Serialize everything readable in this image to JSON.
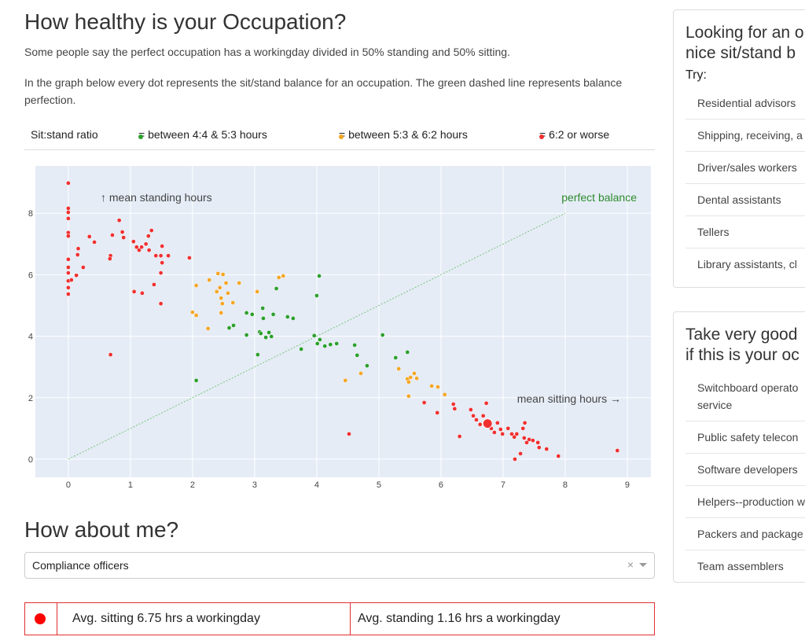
{
  "header": {
    "title": "How healthy is your Occupation?",
    "paragraph_1": "Some people say the perfect occupation has a workingday divided in 50% standing and 50% sitting.",
    "paragraph_2": "In the graph below every dot represents the sit/stand balance for an occupation. The green dashed line represents balance perfection."
  },
  "legend": {
    "title": "Sit:stand ratio"
  },
  "chart_data": {
    "type": "scatter",
    "xlim": [
      -0.53,
      9.38
    ],
    "ylim": [
      -0.59,
      9.54
    ],
    "xticks": [
      0,
      1,
      2,
      3,
      4,
      5,
      6,
      7,
      8,
      9
    ],
    "yticks": [
      0,
      2,
      4,
      6,
      8
    ],
    "grid": true,
    "background": "#e5ecf6",
    "annotations": [
      {
        "text": "↑ mean standing hours",
        "color": "#444444"
      },
      {
        "text": "perfect balance",
        "color": "#2e8b2e"
      },
      {
        "text": "mean sitting hours →",
        "color": "#444444"
      }
    ],
    "reference_line": {
      "x": [
        0,
        8
      ],
      "y": [
        0,
        8
      ],
      "color": "#7cc47c"
    },
    "highlight": {
      "x": 6.75,
      "y": 1.16,
      "color": "#f03030"
    },
    "series": [
      {
        "name": "= between 4:4 & 5:3 hours",
        "color": "#2ca02c",
        "x": [
          2.06,
          2.59,
          2.66,
          2.87,
          2.87,
          2.96,
          3.08,
          3.13,
          3.14,
          3.05,
          3.1,
          3.18,
          3.23,
          3.27,
          3.3,
          3.35,
          3.53,
          3.62,
          3.75,
          3.96,
          4.0,
          4.01,
          4.04,
          4.05,
          4.13,
          4.22,
          4.32,
          4.61,
          4.65,
          4.81,
          5.06,
          5.27,
          5.46
        ],
        "values": [
          2.56,
          4.27,
          4.35,
          4.04,
          4.76,
          4.71,
          4.14,
          4.91,
          4.58,
          3.4,
          4.09,
          3.96,
          4.12,
          3.99,
          4.71,
          5.55,
          4.63,
          4.58,
          3.58,
          4.02,
          5.32,
          3.76,
          5.96,
          3.89,
          3.68,
          3.73,
          3.76,
          3.71,
          3.38,
          3.04,
          4.04,
          3.3,
          3.48
        ]
      },
      {
        "name": "= between 5:3 & 6:2 hours",
        "color": "#f5a623",
        "x": [
          2.06,
          2.27,
          2.41,
          2.49,
          2.54,
          2.44,
          2.39,
          2.46,
          2.48,
          2.57,
          2.65,
          2.46,
          2.75,
          3.04,
          2.0,
          2.06,
          2.25,
          3.39,
          3.46,
          4.46,
          4.71,
          5.32,
          5.46,
          5.48,
          5.51,
          5.57,
          5.48,
          5.61,
          5.85,
          5.95,
          6.06
        ],
        "values": [
          5.65,
          5.83,
          6.04,
          6.01,
          5.73,
          5.58,
          5.45,
          5.24,
          5.06,
          5.4,
          5.09,
          4.76,
          5.73,
          5.45,
          4.78,
          4.68,
          4.25,
          5.91,
          5.96,
          2.56,
          2.79,
          2.94,
          2.61,
          2.51,
          2.66,
          2.79,
          2.05,
          2.63,
          2.38,
          2.35,
          2.1
        ]
      },
      {
        "name": "= 6:2 or worse",
        "color": "#f03030",
        "x": [
          0,
          0,
          0,
          0,
          0,
          0,
          0,
          0,
          0,
          0,
          0,
          0,
          0.05,
          0.13,
          0.15,
          0.16,
          0.24,
          0.34,
          0.42,
          0.68,
          0.71,
          0.82,
          0.87,
          0.89,
          1.05,
          1.1,
          1.14,
          1.18,
          1.25,
          1.29,
          1.34,
          1.3,
          1.41,
          1.49,
          1.51,
          1.51,
          1.61,
          1.06,
          1.19,
          1.38,
          1.49,
          1.49,
          1.95,
          0.68,
          0.67,
          4.52,
          5.73,
          5.94,
          6.2,
          6.22,
          6.3,
          6.48,
          6.52,
          6.57,
          6.63,
          6.68,
          6.75,
          6.73,
          6.81,
          6.86,
          6.91,
          6.96,
          6.99,
          7.08,
          7.14,
          7.18,
          7.19,
          7.22,
          7.28,
          7.32,
          7.34,
          7.38,
          7.35,
          7.42,
          7.48,
          7.56,
          7.58,
          7.7,
          7.89,
          8.84
        ],
        "values": [
          8.98,
          8.16,
          8.03,
          7.83,
          7.37,
          7.26,
          6.5,
          6.24,
          6.06,
          5.8,
          5.58,
          5.37,
          5.83,
          5.98,
          6.65,
          6.85,
          6.24,
          7.24,
          7.06,
          6.62,
          7.29,
          7.77,
          7.39,
          7.21,
          7.08,
          6.9,
          6.8,
          6.9,
          7.0,
          7.26,
          7.44,
          6.8,
          6.62,
          6.62,
          6.39,
          6.93,
          6.62,
          5.45,
          5.4,
          5.68,
          5.06,
          6.06,
          6.55,
          3.4,
          6.52,
          0.82,
          1.84,
          1.51,
          1.79,
          1.64,
          0.74,
          1.61,
          1.41,
          1.28,
          1.13,
          1.41,
          1.2,
          1.82,
          1.0,
          0.87,
          1.18,
          0.97,
          0.82,
          1.0,
          0.82,
          0.72,
          0,
          0.82,
          0.18,
          1.0,
          0.69,
          0.54,
          1.18,
          0.64,
          0.61,
          0.54,
          0.38,
          0.33,
          0.1,
          0.28
        ]
      }
    ]
  },
  "about": {
    "title": "How about me?",
    "selected": "Compliance officers",
    "clear": "×",
    "sitting": "Avg. sitting 6.75 hrs a workingday",
    "standing": "Avg. standing 1.16 hrs a workingday"
  },
  "sidebar": [
    {
      "title": "Looking for an o\nnice sit/stand b",
      "try": "Try:",
      "items": [
        "Residential advisors",
        "Shipping, receiving, a",
        "Driver/sales workers",
        "Dental assistants",
        "Tellers",
        "Library assistants, cl"
      ]
    },
    {
      "title": "Take very good\nif this is your oc",
      "items": [
        "Switchboard operato\nservice",
        "Public safety telecon",
        "Software developers",
        "Helpers--production w",
        "Packers and package",
        "Team assemblers"
      ]
    }
  ]
}
